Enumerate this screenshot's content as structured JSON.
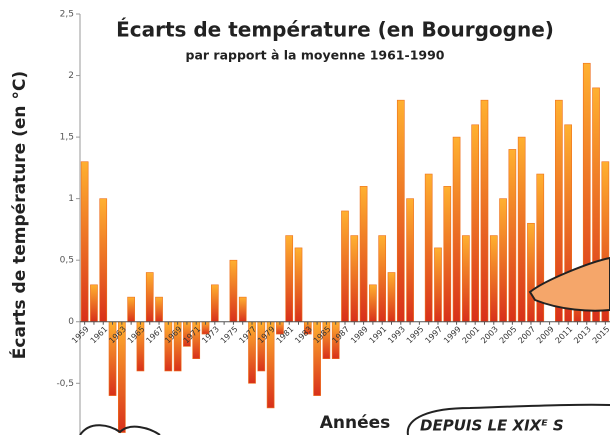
{
  "chart_data": {
    "type": "bar",
    "title": "Écarts de température (en Bourgogne)",
    "subtitle": "par rapport à la moyenne 1961-1990",
    "y_label": "Écarts de température (en °C)",
    "x_label": "Années",
    "annotation": "DEPUIS LE XIXᴱ S",
    "categories": [
      "1959",
      null,
      "1961",
      null,
      "1963",
      null,
      "1965",
      null,
      "1967",
      null,
      "1969",
      null,
      "1971",
      null,
      "1973",
      null,
      "1975",
      null,
      "1977",
      null,
      "1979",
      null,
      "1981",
      null,
      "1983",
      null,
      "1985",
      null,
      "1987",
      null,
      "1989",
      null,
      "1991",
      null,
      "1993",
      null,
      "1995",
      null,
      "1997",
      null,
      "1999",
      null,
      "2001",
      null,
      "2003",
      null,
      "2005",
      null,
      "2007",
      null,
      "2009",
      null,
      "2011",
      null,
      "2013",
      null,
      "2015"
    ],
    "values": [
      1.3,
      0.3,
      1.0,
      -0.6,
      -0.9,
      0.2,
      -0.4,
      0.4,
      0.2,
      -0.4,
      -0.4,
      -0.2,
      -0.3,
      -0.1,
      0.3,
      0,
      0.5,
      0.2,
      -0.5,
      -0.4,
      -0.7,
      -0.1,
      0.7,
      0.6,
      -0.1,
      -0.6,
      -0.3,
      -0.3,
      0.9,
      0.7,
      1.1,
      0.3,
      0.7,
      0.4,
      1.8,
      1.0,
      0,
      1.2,
      0.6,
      1.1,
      1.5,
      0.7,
      1.6,
      1.8,
      0.7,
      1.0,
      1.4,
      1.5,
      0.8,
      1.2,
      0,
      1.8,
      1.6,
      0.4,
      2.1,
      1.9,
      1.3
    ],
    "color": "#ee6f1c",
    "ylim": [
      -0.92,
      2.5
    ],
    "yticks": [
      {
        "value": -0.5,
        "label": "-0,5"
      },
      0,
      {
        "value": 0.5,
        "label": "0,5"
      },
      1,
      {
        "value": 1.5,
        "label": "1,5"
      },
      2,
      {
        "value": 2.5,
        "label": "2,5"
      }
    ],
    "grid": false
  }
}
